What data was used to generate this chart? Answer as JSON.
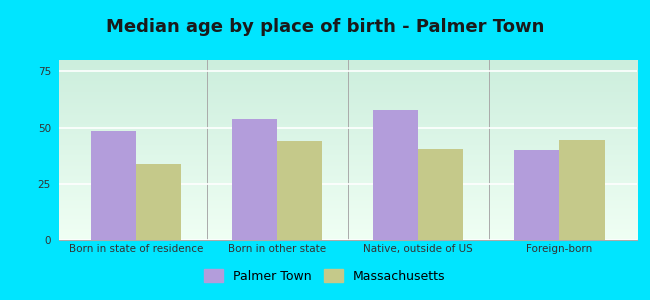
{
  "title": "Median age by place of birth - Palmer Town",
  "categories": [
    "Born in state of residence",
    "Born in other state",
    "Native, outside of US",
    "Foreign-born"
  ],
  "palmer_town": [
    48.5,
    54.0,
    58.0,
    40.0
  ],
  "massachusetts": [
    34.0,
    44.0,
    40.5,
    44.5
  ],
  "palmer_color": "#b39ddb",
  "massachusetts_color": "#c5c98a",
  "ylim": [
    0,
    80
  ],
  "yticks": [
    0,
    25,
    50,
    75
  ],
  "background_outer": "#00e5ff",
  "background_inner_top": "#cceedd",
  "background_inner_bottom": "#f0fff4",
  "legend_palmer": "Palmer Town",
  "legend_massachusetts": "Massachusetts",
  "bar_width": 0.32,
  "title_fontsize": 13,
  "tick_fontsize": 7.5,
  "legend_fontsize": 9
}
